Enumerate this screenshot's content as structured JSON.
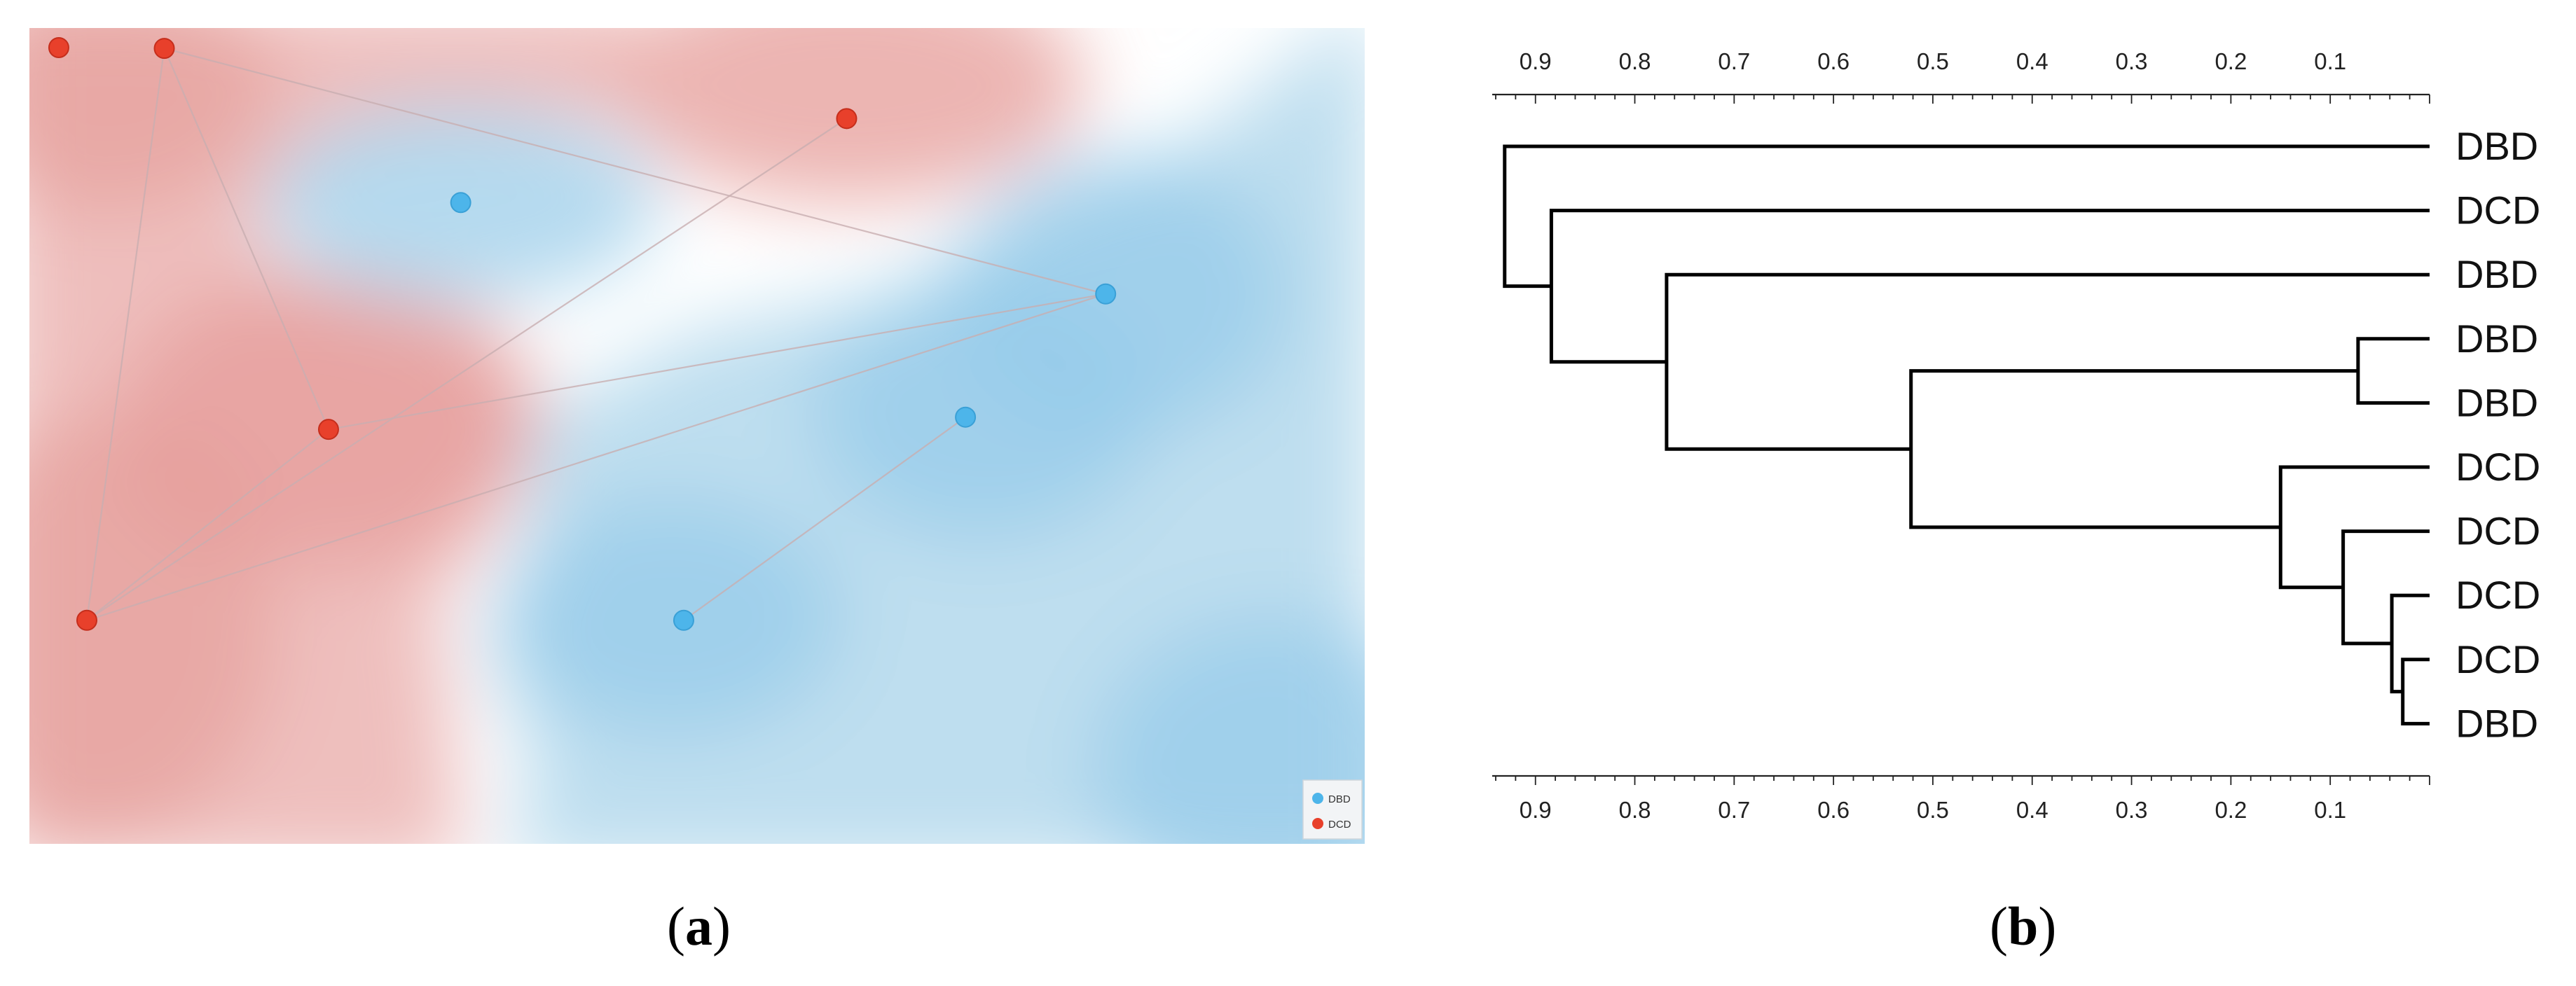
{
  "captions": {
    "a": "a",
    "b": "b"
  },
  "colors": {
    "DBD": "#4db5ea",
    "DCD": "#e8402b",
    "edge": "#c8aeb0",
    "tree": "#000000"
  },
  "chart_data": [
    {
      "type": "scatter",
      "panel": "a",
      "legend": [
        {
          "name": "DBD",
          "color": "#4db5ea"
        },
        {
          "name": "DCD",
          "color": "#e8402b"
        }
      ],
      "legend_position": "bottom-right",
      "points": [
        {
          "id": 0,
          "group": "DCD",
          "x": 0.022,
          "y": 0.976
        },
        {
          "id": 1,
          "group": "DCD",
          "x": 0.101,
          "y": 0.975
        },
        {
          "id": 2,
          "group": "DCD",
          "x": 0.612,
          "y": 0.889
        },
        {
          "id": 3,
          "group": "DBD",
          "x": 0.323,
          "y": 0.786
        },
        {
          "id": 4,
          "group": "DBD",
          "x": 0.806,
          "y": 0.674
        },
        {
          "id": 5,
          "group": "DBD",
          "x": 0.701,
          "y": 0.523
        },
        {
          "id": 6,
          "group": "DCD",
          "x": 0.224,
          "y": 0.508
        },
        {
          "id": 7,
          "group": "DBD",
          "x": 0.49,
          "y": 0.274
        },
        {
          "id": 8,
          "group": "DCD",
          "x": 0.043,
          "y": 0.274
        }
      ],
      "edges": [
        [
          1,
          6
        ],
        [
          1,
          8
        ],
        [
          1,
          4
        ],
        [
          6,
          8
        ],
        [
          6,
          4
        ],
        [
          8,
          4
        ],
        [
          8,
          2
        ],
        [
          7,
          5
        ]
      ]
    },
    {
      "type": "dendrogram",
      "panel": "b",
      "xlim": [
        0.94,
        0.0
      ],
      "ticks": [
        "0.9",
        "0.8",
        "0.7",
        "0.6",
        "0.5",
        "0.4",
        "0.3",
        "0.2",
        "0.1"
      ],
      "leaves": [
        "DBD",
        "DCD",
        "DBD",
        "DBD",
        "DBD",
        "DCD",
        "DCD",
        "DCD",
        "DCD",
        "DBD"
      ],
      "merges": [
        {
          "a": 8,
          "b": 9,
          "height": 0.027
        },
        {
          "a": 7,
          "b": 10,
          "height": 0.038
        },
        {
          "a": 6,
          "b": 11,
          "height": 0.087
        },
        {
          "a": 3,
          "b": 4,
          "height": 0.072
        },
        {
          "a": 5,
          "b": 12,
          "height": 0.15
        },
        {
          "a": 13,
          "b": 14,
          "height": 0.522
        },
        {
          "a": 2,
          "b": 15,
          "height": 0.768
        },
        {
          "a": 1,
          "b": 16,
          "height": 0.884
        },
        {
          "a": 0,
          "b": 17,
          "height": 0.931
        }
      ]
    }
  ]
}
